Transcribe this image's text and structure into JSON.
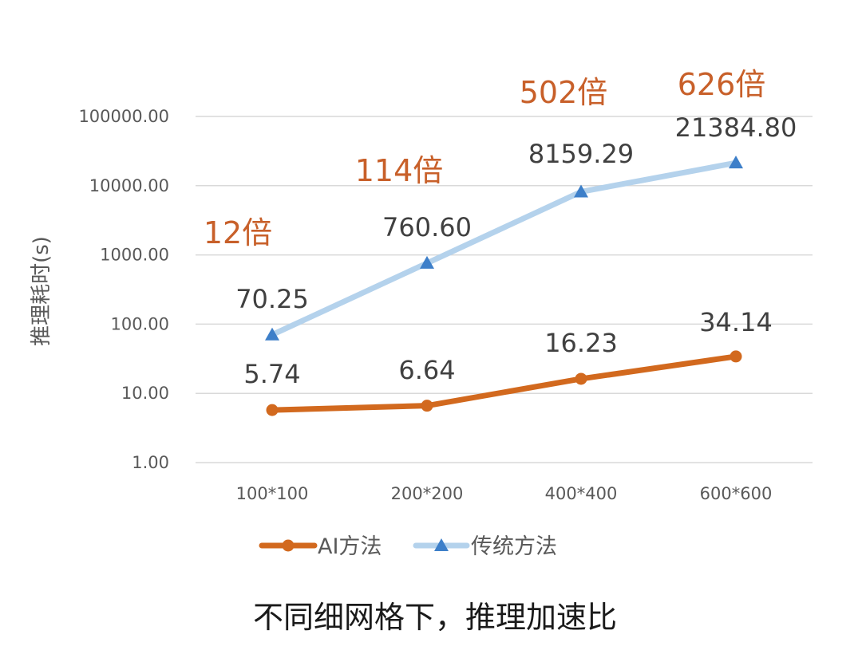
{
  "chart_data": {
    "type": "line",
    "title": "不同细网格下，推理加速比",
    "ylabel": "推理耗时(s)",
    "xlabel": "",
    "y_scale": "log",
    "ylim": [
      1,
      100000
    ],
    "y_ticks": [
      "1.00",
      "10.00",
      "100.00",
      "1000.00",
      "10000.00",
      "100000.00"
    ],
    "categories": [
      "100*100",
      "200*200",
      "400*400",
      "600*600"
    ],
    "grid": true,
    "legend_position": "bottom",
    "series": [
      {
        "name": "AI方法",
        "color": "#d2691e",
        "marker": "circle",
        "values": [
          5.74,
          6.64,
          16.23,
          34.14
        ],
        "labels": [
          "5.74",
          "6.64",
          "16.23",
          "34.14"
        ]
      },
      {
        "name": "传统方法",
        "color": "#b4d2ec",
        "marker_color": "#3d7fc9",
        "marker": "triangle",
        "values": [
          70.25,
          760.6,
          8159.29,
          21384.8
        ],
        "labels": [
          "70.25",
          "760.60",
          "8159.29",
          "21384.80"
        ]
      }
    ],
    "annotations": [
      "12倍",
      "114倍",
      "502倍",
      "626倍"
    ],
    "annotation_color": "#c8602a"
  }
}
